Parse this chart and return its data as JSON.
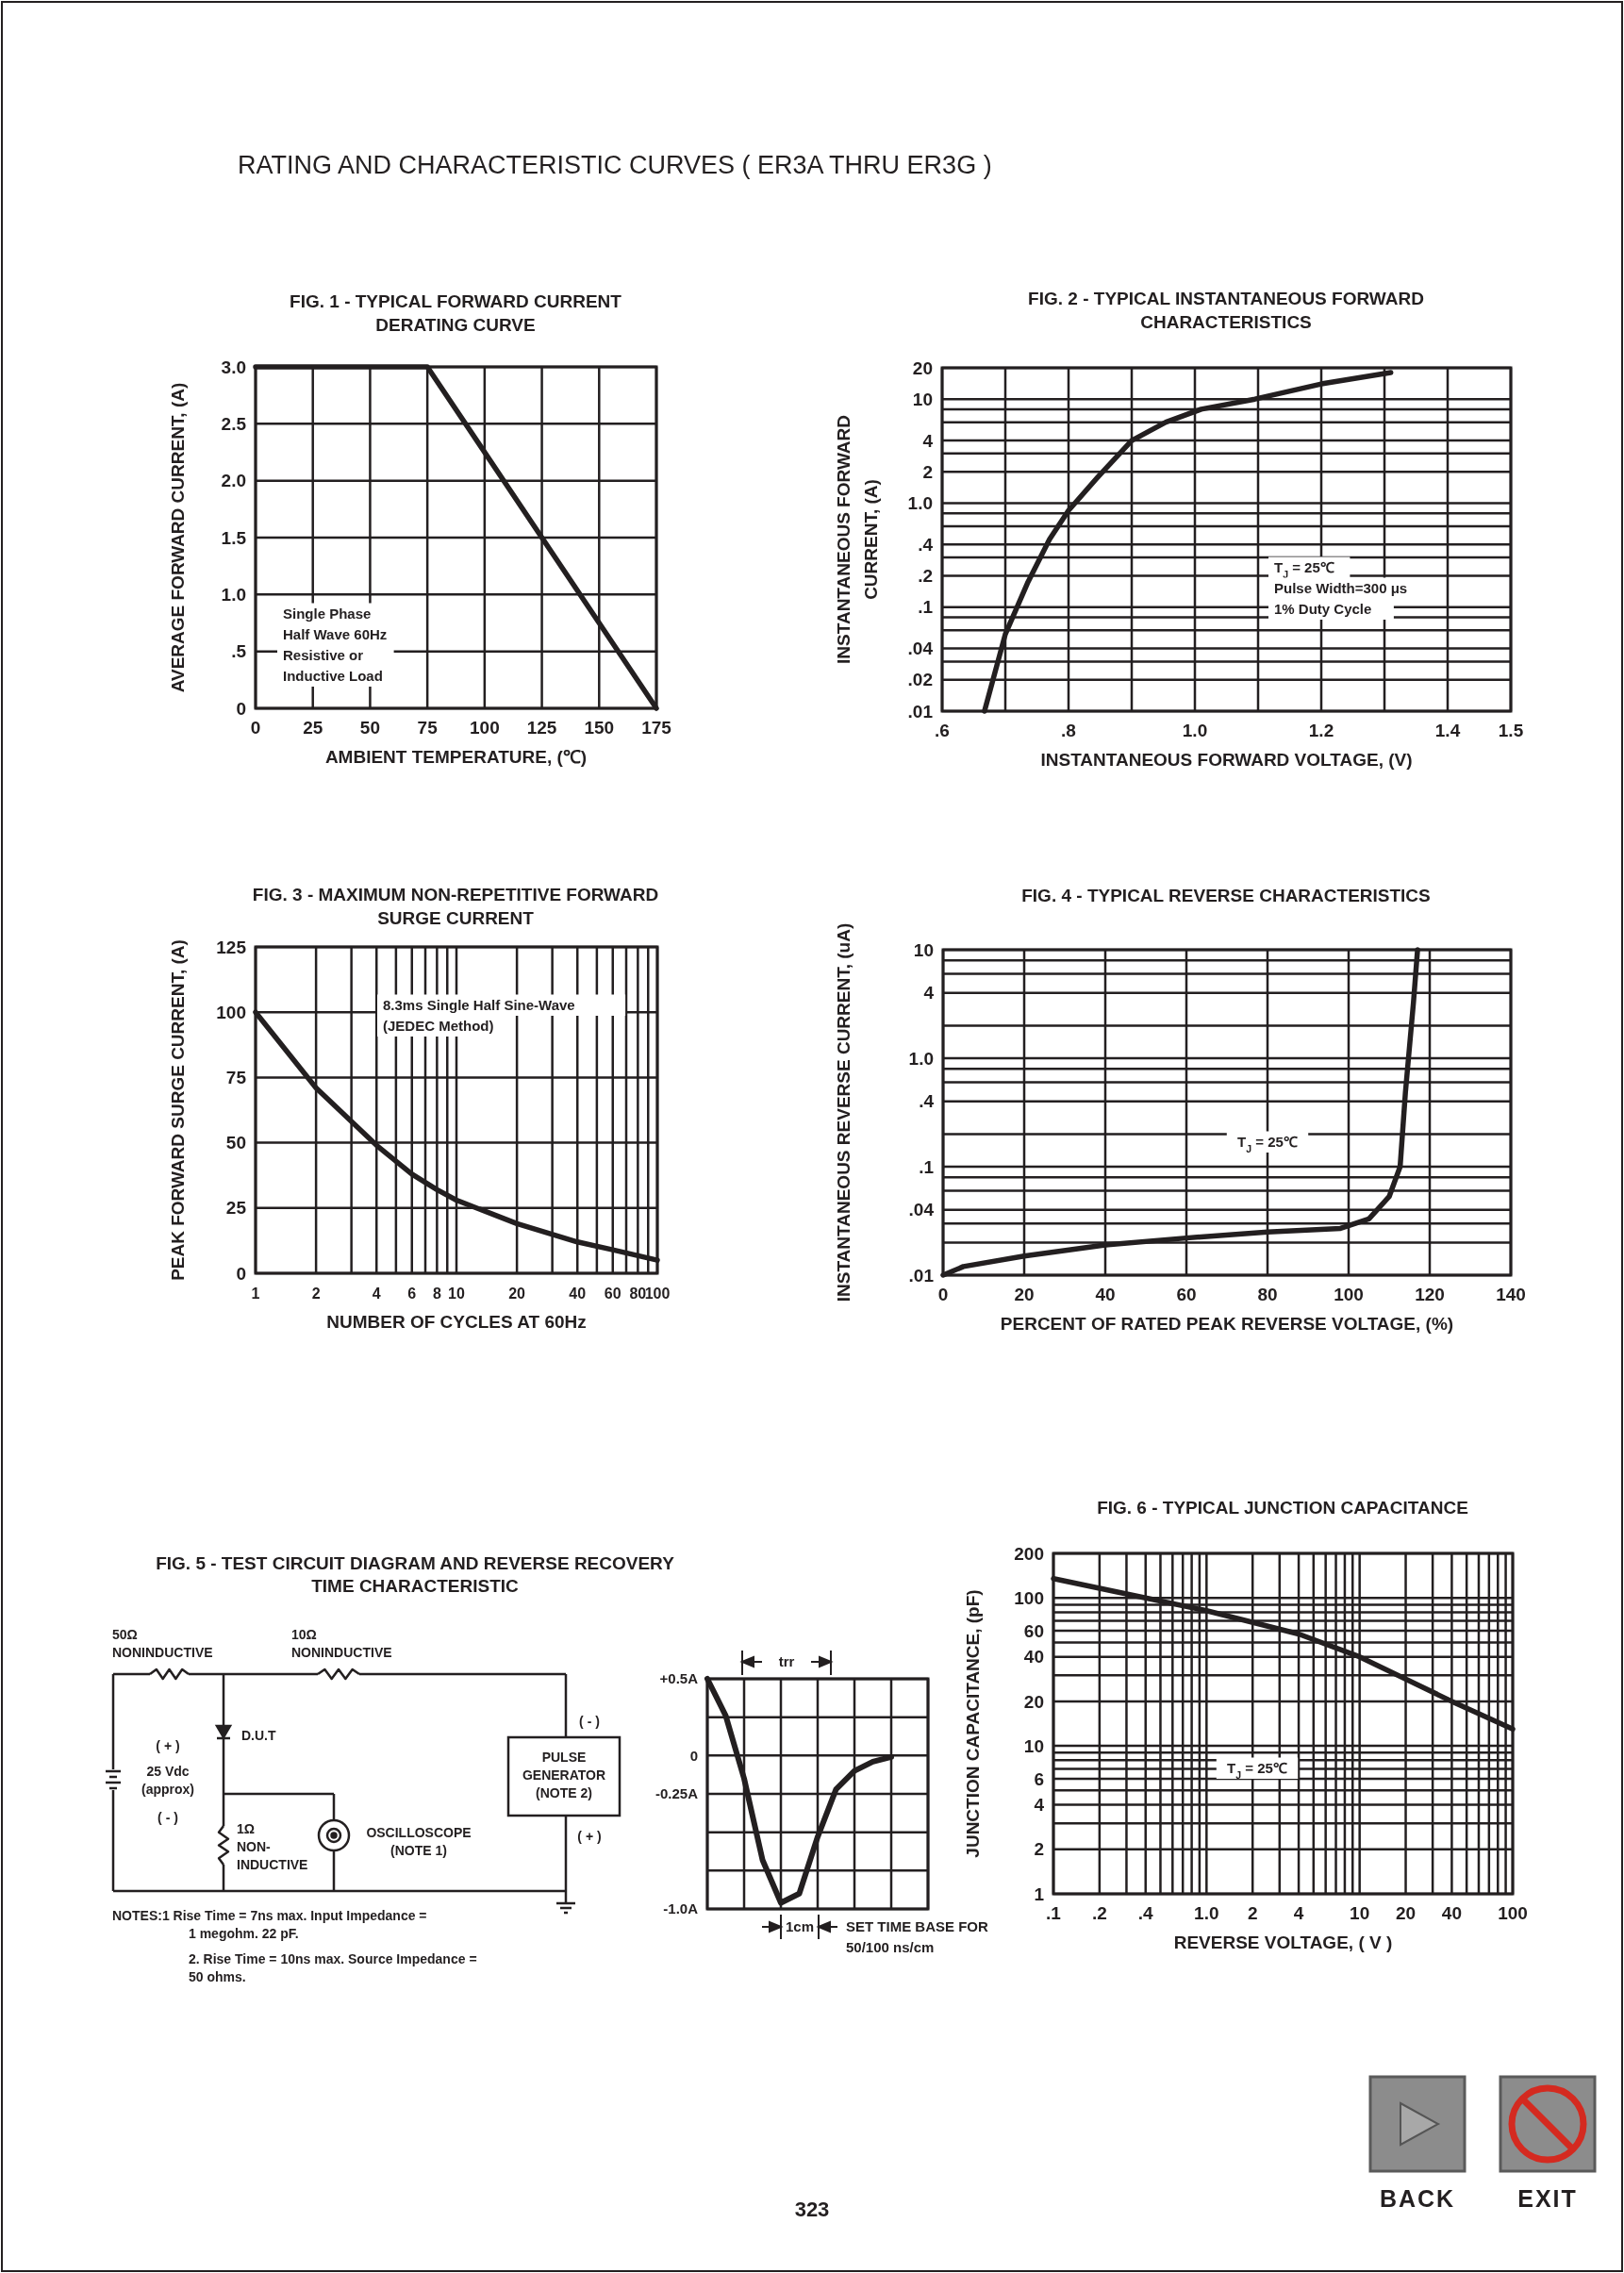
{
  "chart_data": [
    {
      "type": "other",
      "title": "RATING AND CHARACTERISTIC CURVES ( ER3A THRU ER3G )"
    },
    {
      "type": "line",
      "title": "FIG. 1 - TYPICAL FORWARD CURRENT\nDERATING CURVE",
      "xlabel": "AMBIENT TEMPERATURE, (℃)",
      "ylabel": "AVERAGE FORWARD CURRENT, (A)",
      "xlim": [
        0,
        175
      ],
      "ylim": [
        0,
        3
      ],
      "xticks": [
        0,
        25,
        50,
        75,
        100,
        125,
        150,
        175
      ],
      "yticks": [
        0,
        {
          "value": 0.5,
          "label": ".5"
        },
        {
          "value": 1,
          "label": "1.0"
        },
        1.5,
        {
          "value": 2,
          "label": "2.0"
        },
        2.5,
        {
          "value": 3,
          "label": "3.0"
        }
      ],
      "grid": true,
      "series": [
        {
          "color": "#231f20",
          "x": [
            0,
            75,
            175
          ],
          "values": [
            3,
            3,
            0
          ]
        }
      ],
      "annotations": [
        "Single Phase",
        "Half Wave 60Hz",
        "Resistive or",
        "Inductive Load"
      ]
    },
    {
      "type": "line",
      "title": "FIG. 2 - TYPICAL INSTANTANEOUS FORWARD\nCHARACTERISTICS",
      "xlabel": "INSTANTANEOUS FORWARD VOLTAGE, (V)",
      "ylabel": "INSTANTANEOUS FORWARD\nCURRENT, (A)",
      "log": "y",
      "xlim": [
        0.6,
        1.5
      ],
      "ylim": [
        0.01,
        20
      ],
      "xticks": [
        {
          "value": 0.6,
          "label": ".6"
        },
        {
          "value": 0.7,
          "label": null
        },
        {
          "value": 0.8,
          "label": ".8"
        },
        {
          "value": 0.9,
          "label": null
        },
        {
          "value": 1,
          "label": "1.0"
        },
        {
          "value": 1.1,
          "label": null
        },
        1.2,
        {
          "value": 1.3,
          "label": null
        },
        1.4,
        1.5
      ],
      "yticks": [
        {
          "value": 0.01,
          "label": ".01"
        },
        {
          "value": 0.02,
          "label": ".02"
        },
        {
          "value": 0.03,
          "label": null
        },
        {
          "value": 0.04,
          "label": ".04"
        },
        {
          "value": 0.06,
          "label": null
        },
        {
          "value": 0.08,
          "label": null
        },
        {
          "value": 0.1,
          "label": ".1"
        },
        {
          "value": 0.2,
          "label": ".2"
        },
        {
          "value": 0.3,
          "label": null
        },
        {
          "value": 0.4,
          "label": ".4"
        },
        {
          "value": 0.6,
          "label": null
        },
        {
          "value": 0.8,
          "label": null
        },
        {
          "value": 1,
          "label": "1.0"
        },
        2,
        {
          "value": 3,
          "label": null
        },
        4,
        {
          "value": 6,
          "label": null
        },
        {
          "value": 8,
          "label": null
        },
        10,
        20
      ],
      "grid": true,
      "series": [
        {
          "color": "#231f20",
          "x": [
            0.667,
            0.7,
            0.735,
            0.77,
            0.8,
            0.847,
            0.9,
            0.954,
            1.01,
            1.095,
            1.2,
            1.31
          ],
          "values": [
            0.01,
            0.055,
            0.17,
            0.45,
            0.85,
            1.8,
            4,
            6,
            8,
            10,
            14,
            18
          ]
        }
      ],
      "annotations": [
        "T$_{J}$ = 25℃",
        "Pulse Width=300 μs",
        "1% Duty Cycle"
      ]
    },
    {
      "type": "line",
      "title": "FIG. 3 - MAXIMUM NON-REPETITIVE FORWARD\nSURGE CURRENT",
      "xlabel": "NUMBER OF CYCLES AT 60Hz",
      "ylabel": "PEAK FORWARD SURGE CURRENT, (A)",
      "log": "x",
      "xlim": [
        1,
        100
      ],
      "ylim": [
        0,
        125
      ],
      "xticks": [
        1,
        2,
        {
          "value": 3,
          "label": null
        },
        4,
        {
          "value": 5,
          "label": null
        },
        6,
        {
          "value": 7,
          "label": null
        },
        8,
        {
          "value": 9,
          "label": null
        },
        10,
        20,
        {
          "value": 30,
          "label": null
        },
        40,
        {
          "value": 50,
          "label": null
        },
        60,
        {
          "value": 70,
          "label": null
        },
        80,
        {
          "value": 90,
          "label": null
        },
        100
      ],
      "yticks": [
        0,
        25,
        50,
        75,
        100,
        125
      ],
      "grid": true,
      "series": [
        {
          "color": "#231f20",
          "x": [
            1,
            2,
            4,
            6,
            8,
            10,
            20,
            40,
            60,
            100
          ],
          "values": [
            100,
            71,
            49,
            38,
            32,
            28,
            19,
            12,
            9,
            5
          ]
        }
      ],
      "annotations": [
        "8.3ms Single Half Sine-Wave",
        "(JEDEC Method)"
      ]
    },
    {
      "type": "line",
      "title": "FIG. 4 - TYPICAL REVERSE CHARACTERISTICS",
      "xlabel": "PERCENT OF RATED PEAK REVERSE VOLTAGE, (%)",
      "ylabel": "INSTANTANEOUS REVERSE CURRENT, (uA)",
      "log": "y",
      "xlim": [
        0,
        140
      ],
      "ylim": [
        0.01,
        10
      ],
      "xticks": [
        0,
        20,
        40,
        60,
        80,
        100,
        120,
        140
      ],
      "yticks": [
        {
          "value": 0.01,
          "label": ".01"
        },
        {
          "value": 0.02,
          "label": null
        },
        {
          "value": 0.03,
          "label": null
        },
        {
          "value": 0.04,
          "label": ".04"
        },
        {
          "value": 0.06,
          "label": null
        },
        {
          "value": 0.08,
          "label": null
        },
        {
          "value": 0.1,
          "label": ".1"
        },
        {
          "value": 0.2,
          "label": null
        },
        {
          "value": 0.4,
          "label": ".4"
        },
        {
          "value": 0.6,
          "label": null
        },
        {
          "value": 0.8,
          "label": null
        },
        {
          "value": 1,
          "label": "1.0"
        },
        {
          "value": 2,
          "label": null
        },
        4,
        {
          "value": 6,
          "label": null
        },
        {
          "value": 8,
          "label": null
        },
        10
      ],
      "grid": true,
      "series": [
        {
          "color": "#231f20",
          "x": [
            0,
            5,
            20,
            40,
            60,
            80,
            98,
            105,
            110,
            112.7,
            114,
            116,
            117
          ],
          "values": [
            0.01,
            0.012,
            0.015,
            0.019,
            0.022,
            0.025,
            0.027,
            0.033,
            0.053,
            0.1,
            0.48,
            3.3,
            10
          ]
        }
      ],
      "annotations": [
        "T$_{J}$ = 25℃"
      ]
    },
    {
      "type": "other",
      "title": "FIG. 5 - TEST CIRCUIT DIAGRAM AND REVERSE RECOVERY\nTIME CHARACTERISTIC",
      "annotations": [
        "50Ω\nNONINDUCTIVE",
        "10Ω\nNONINDUCTIVE",
        "D.U.T",
        "( + )",
        "25 Vdc\n(approx)",
        "( - )",
        "1Ω\nNON-\nINDUCTIVE",
        "OSCILLOSCOPE\n(NOTE 1)",
        "PULSE\nGENERATOR\n(NOTE 2)",
        "( - )",
        "( + )",
        "NOTES:1  Rise Time = 7ns max. Input Impedance =",
        "1 megohm. 22 pF.",
        "2. Rise Time = 10ns max. Source Impedance =",
        "50 ohms."
      ]
    },
    {
      "type": "line",
      "categories": [
        null,
        null,
        null,
        null,
        null,
        null,
        null,
        null,
        null,
        null,
        null,
        null,
        null
      ],
      "ylim": [
        -1,
        0.5
      ],
      "yticks": [
        {
          "value": -1,
          "label": "-1.0A"
        },
        {
          "value": -0.75,
          "label": null
        },
        {
          "value": -0.5,
          "label": null
        },
        {
          "value": -0.25,
          "label": "-0.25A"
        },
        {
          "value": 0,
          "label": "0"
        },
        {
          "value": 0.25,
          "label": null
        },
        {
          "value": 0.5,
          "label": "+0.5A"
        }
      ],
      "grid": true,
      "series": [
        {
          "color": "#231f20",
          "values": [
            0.5,
            0.26,
            -0.15,
            -0.68,
            -0.96,
            -0.9,
            -0.53,
            -0.22,
            -0.1,
            -0.04,
            -0.01,
            null,
            null
          ]
        }
      ],
      "annotations": [
        "trr",
        "1cm",
        "SET TIME BASE FOR",
        "50/100 ns/cm"
      ]
    },
    {
      "type": "line",
      "title": "FIG. 6 - TYPICAL JUNCTION CAPACITANCE",
      "xlabel": "REVERSE VOLTAGE, ( V )",
      "ylabel": "JUNCTION CAPACITANCE, (pF)",
      "log": "xy",
      "xlim": [
        0.1,
        100
      ],
      "ylim": [
        1,
        200
      ],
      "xticks": [
        {
          "value": 0.1,
          "label": ".1"
        },
        {
          "value": 0.2,
          "label": ".2"
        },
        {
          "value": 0.3,
          "label": null
        },
        {
          "value": 0.4,
          "label": ".4"
        },
        {
          "value": 0.5,
          "label": null
        },
        {
          "value": 0.6,
          "label": null
        },
        {
          "value": 0.7,
          "label": null
        },
        {
          "value": 0.8,
          "label": null
        },
        {
          "value": 0.9,
          "label": null
        },
        {
          "value": 1,
          "label": "1.0"
        },
        2,
        {
          "value": 3,
          "label": null
        },
        4,
        {
          "value": 5,
          "label": null
        },
        {
          "value": 6,
          "label": null
        },
        {
          "value": 7,
          "label": null
        },
        {
          "value": 8,
          "label": null
        },
        {
          "value": 9,
          "label": null
        },
        10,
        20,
        {
          "value": 30,
          "label": null
        },
        40,
        {
          "value": 50,
          "label": null
        },
        {
          "value": 60,
          "label": null
        },
        {
          "value": 70,
          "label": null
        },
        {
          "value": 80,
          "label": null
        },
        {
          "value": 90,
          "label": null
        },
        100
      ],
      "yticks": [
        1,
        2,
        {
          "value": 3,
          "label": null
        },
        4,
        {
          "value": 5,
          "label": null
        },
        6,
        {
          "value": 7,
          "label": null
        },
        {
          "value": 8,
          "label": null
        },
        {
          "value": 9,
          "label": null
        },
        10,
        20,
        {
          "value": 30,
          "label": null
        },
        40,
        {
          "value": 50,
          "label": null
        },
        60,
        {
          "value": 70,
          "label": null
        },
        {
          "value": 80,
          "label": null
        },
        {
          "value": 90,
          "label": null
        },
        100,
        200
      ],
      "grid": true,
      "series": [
        {
          "color": "#231f20",
          "x": [
            0.1,
            0.4,
            1,
            4,
            10,
            40,
            100
          ],
          "values": [
            135,
            100,
            82,
            57,
            40,
            20,
            13
          ]
        }
      ],
      "annotations": [
        "T$_{J}$ = 25℃"
      ]
    },
    {
      "type": "other",
      "annotations": [
        "323",
        "BACK",
        "EXIT"
      ]
    }
  ]
}
